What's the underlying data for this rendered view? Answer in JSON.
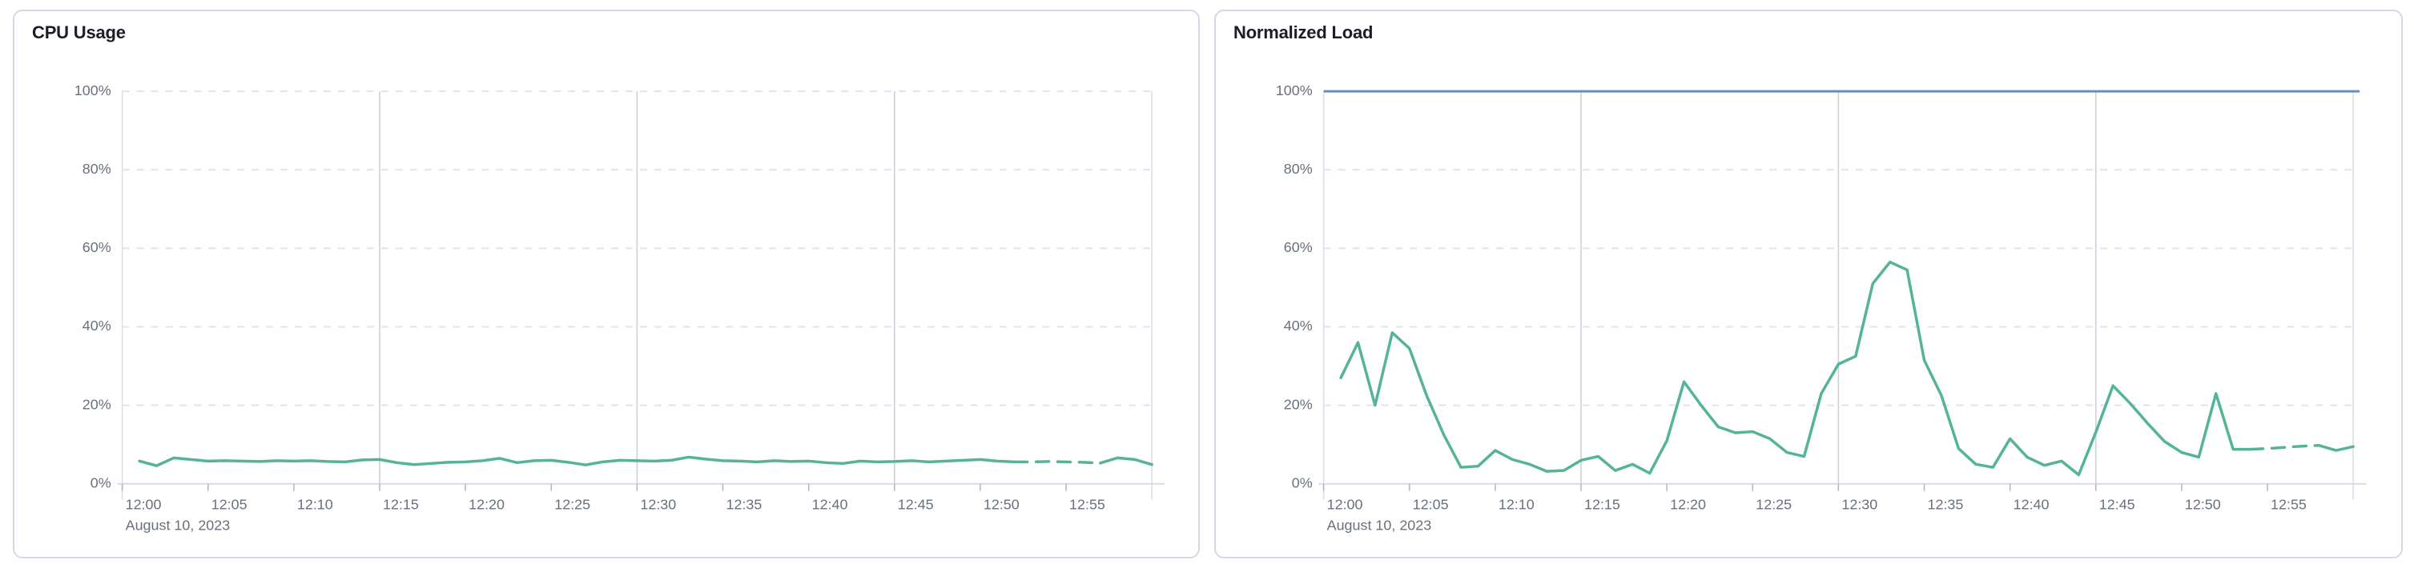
{
  "colors": {
    "background": "#ffffff",
    "panel_border": "#D3DAE6",
    "title_text": "#1D1E24",
    "axis_text": "#69707D",
    "grid_horizontal": "#E0E4EE",
    "grid_vertical": "#CDD1D9",
    "axis_line": "#D3DAE6",
    "boundary_line": "#DCDFE6",
    "tick_mark": "#AFB4BE",
    "series_green": "#54B399",
    "threshold_blue": "#6092C0"
  },
  "chart_data": [
    {
      "type": "line",
      "title": "CPU Usage",
      "ylabel": "",
      "xlabel": "",
      "ylim": [
        0,
        100
      ],
      "x_domain_minutes": [
        0,
        60
      ],
      "grid": true,
      "legend": false,
      "date_label": "August 10, 2023",
      "y_ticks": [
        {
          "value": 0,
          "label": "0%"
        },
        {
          "value": 20,
          "label": "20%"
        },
        {
          "value": 40,
          "label": "40%"
        },
        {
          "value": 60,
          "label": "60%"
        },
        {
          "value": 80,
          "label": "80%"
        },
        {
          "value": 100,
          "label": "100%"
        }
      ],
      "x_ticks": [
        {
          "minute": 0,
          "label": "12:00"
        },
        {
          "minute": 5,
          "label": "12:05"
        },
        {
          "minute": 10,
          "label": "12:10"
        },
        {
          "minute": 15,
          "label": "12:15"
        },
        {
          "minute": 20,
          "label": "12:20"
        },
        {
          "minute": 25,
          "label": "12:25"
        },
        {
          "minute": 30,
          "label": "12:30"
        },
        {
          "minute": 35,
          "label": "12:35"
        },
        {
          "minute": 40,
          "label": "12:40"
        },
        {
          "minute": 45,
          "label": "12:45"
        },
        {
          "minute": 50,
          "label": "12:50"
        },
        {
          "minute": 55,
          "label": "12:55"
        }
      ],
      "x_gridline_minutes": [
        15,
        30,
        45
      ],
      "threshold": null,
      "series": [
        {
          "name": "cpu-usage",
          "color": "#54B399",
          "start_minute": 1,
          "dash_range": [
            52,
            57
          ],
          "values": [
            5.8,
            4.6,
            6.6,
            6.2,
            5.8,
            5.9,
            5.8,
            5.7,
            5.9,
            5.8,
            5.9,
            5.7,
            5.6,
            6.1,
            6.2,
            5.4,
            4.9,
            5.2,
            5.5,
            5.6,
            5.9,
            6.5,
            5.4,
            5.9,
            6.0,
            5.5,
            4.8,
            5.6,
            6.0,
            5.9,
            5.8,
            6.0,
            6.8,
            6.3,
            5.9,
            5.8,
            5.6,
            5.9,
            5.7,
            5.8,
            5.4,
            5.2,
            5.8,
            5.6,
            5.7,
            5.9,
            5.6,
            5.8,
            6.0,
            6.2,
            5.8,
            5.6,
            5.6,
            5.7,
            5.6,
            5.5,
            5.3,
            6.6,
            6.2,
            4.9
          ]
        }
      ]
    },
    {
      "type": "line",
      "title": "Normalized Load",
      "ylabel": "",
      "xlabel": "",
      "ylim": [
        0,
        100
      ],
      "x_domain_minutes": [
        0,
        60
      ],
      "grid": true,
      "legend": false,
      "date_label": "August 10, 2023",
      "y_ticks": [
        {
          "value": 0,
          "label": "0%"
        },
        {
          "value": 20,
          "label": "20%"
        },
        {
          "value": 40,
          "label": "40%"
        },
        {
          "value": 60,
          "label": "60%"
        },
        {
          "value": 80,
          "label": "80%"
        },
        {
          "value": 100,
          "label": "100%"
        }
      ],
      "x_ticks": [
        {
          "minute": 0,
          "label": "12:00"
        },
        {
          "minute": 5,
          "label": "12:05"
        },
        {
          "minute": 10,
          "label": "12:10"
        },
        {
          "minute": 15,
          "label": "12:15"
        },
        {
          "minute": 20,
          "label": "12:20"
        },
        {
          "minute": 25,
          "label": "12:25"
        },
        {
          "minute": 30,
          "label": "12:30"
        },
        {
          "minute": 35,
          "label": "12:35"
        },
        {
          "minute": 40,
          "label": "12:40"
        },
        {
          "minute": 45,
          "label": "12:45"
        },
        {
          "minute": 50,
          "label": "12:50"
        },
        {
          "minute": 55,
          "label": "12:55"
        }
      ],
      "x_gridline_minutes": [
        15,
        30,
        45
      ],
      "threshold": {
        "value": 100,
        "color": "#6092C0"
      },
      "series": [
        {
          "name": "normalized-load",
          "color": "#54B399",
          "start_minute": 1,
          "dash_range": [
            54,
            58
          ],
          "values": [
            27.0,
            36.0,
            20.0,
            38.5,
            34.5,
            22.5,
            12.5,
            4.2,
            4.5,
            8.5,
            6.2,
            5.0,
            3.2,
            3.4,
            6.0,
            7.0,
            3.4,
            5.0,
            2.7,
            11.0,
            26.0,
            20.0,
            14.5,
            13.0,
            13.3,
            11.5,
            8.0,
            7.0,
            23.0,
            30.5,
            32.5,
            51.0,
            56.5,
            54.5,
            31.5,
            22.5,
            9.0,
            5.0,
            4.2,
            11.5,
            6.8,
            4.7,
            5.8,
            2.3,
            13.2,
            25.0,
            20.5,
            15.5,
            10.8,
            8.0,
            6.8,
            23.0,
            8.8,
            8.8,
            9.0,
            9.3,
            9.6,
            9.8,
            8.5,
            9.5
          ]
        }
      ]
    }
  ]
}
